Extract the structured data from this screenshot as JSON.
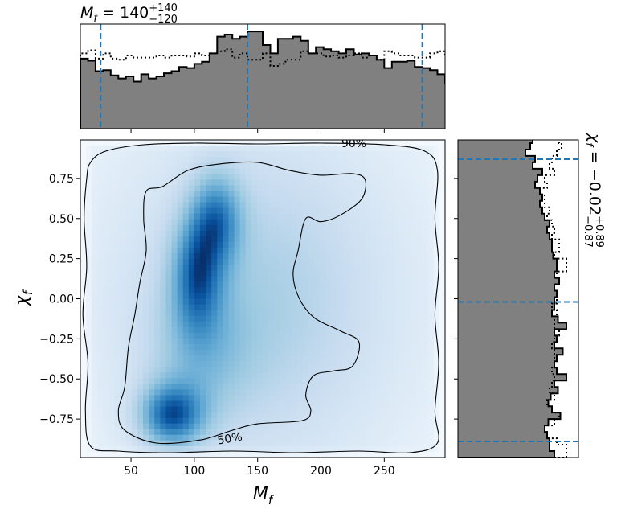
{
  "chart_data": {
    "type": "joint-density",
    "x_param": "M_f",
    "y_param": "χ_f",
    "xlabel": {
      "main": "M",
      "sub": "f"
    },
    "ylabel": {
      "main": "χ",
      "sub": "f"
    },
    "xlim": [
      10,
      298
    ],
    "ylim": [
      -0.99,
      0.99
    ],
    "x_ticks": [
      50,
      100,
      150,
      200,
      250
    ],
    "y_ticks": [
      0.75,
      0.5,
      0.25,
      0.0,
      -0.25,
      -0.5,
      -0.75
    ],
    "x_tick_labels": [
      "50",
      "100",
      "150",
      "200",
      "250"
    ],
    "y_tick_labels": [
      "0.75",
      "0.50",
      "0.25",
      "0.00",
      "−0.25",
      "−0.50",
      "−0.75"
    ],
    "top_title": {
      "param": "M",
      "sub": "f",
      "median": "140",
      "plus": "+140",
      "minus": "−120"
    },
    "right_title": {
      "param": "χ",
      "sub": "f",
      "median": "−0.02",
      "plus": "+0.89",
      "minus": "−0.87"
    },
    "x_quantile_lines": [
      26,
      142,
      280
    ],
    "y_quantile_lines": [
      -0.89,
      -0.02,
      0.87
    ],
    "density_blobs": [
      {
        "x": 118,
        "y": 0.5,
        "sx": 14,
        "sy": 0.2,
        "w": 0.55
      },
      {
        "x": 102,
        "y": 0.15,
        "sx": 14,
        "sy": 0.25,
        "w": 0.6
      },
      {
        "x": 82,
        "y": -0.73,
        "sx": 18,
        "sy": 0.14,
        "w": 0.75
      },
      {
        "x": 105,
        "y": -0.35,
        "sx": 28,
        "sy": 0.3,
        "w": 0.25
      },
      {
        "x": 150,
        "y": 0.0,
        "sx": 60,
        "sy": 0.6,
        "w": 0.2
      },
      {
        "x": 150,
        "y": 0.0,
        "sx": 130,
        "sy": 1.2,
        "w": 0.25
      }
    ],
    "contours": [
      {
        "label": "90%",
        "label_pos": [
          226,
          0.97
        ],
        "points": [
          [
            18,
            0.85
          ],
          [
            30,
            0.92
          ],
          [
            60,
            0.96
          ],
          [
            100,
            0.97
          ],
          [
            150,
            0.965
          ],
          [
            200,
            0.97
          ],
          [
            250,
            0.96
          ],
          [
            282,
            0.92
          ],
          [
            292,
            0.8
          ],
          [
            290,
            0.5
          ],
          [
            293,
            0.2
          ],
          [
            290,
            -0.1
          ],
          [
            293,
            -0.4
          ],
          [
            290,
            -0.7
          ],
          [
            292,
            -0.9
          ],
          [
            270,
            -0.96
          ],
          [
            230,
            -0.95
          ],
          [
            180,
            -0.96
          ],
          [
            130,
            -0.95
          ],
          [
            80,
            -0.96
          ],
          [
            40,
            -0.95
          ],
          [
            18,
            -0.92
          ],
          [
            14,
            -0.7
          ],
          [
            16,
            -0.4
          ],
          [
            12,
            -0.1
          ],
          [
            15,
            0.2
          ],
          [
            13,
            0.5
          ],
          [
            15,
            0.75
          ]
        ]
      },
      {
        "label": "50%",
        "label_pos": [
          128,
          -0.87
        ],
        "points": [
          [
            62,
            0.67
          ],
          [
            75,
            0.7
          ],
          [
            95,
            0.8
          ],
          [
            120,
            0.84
          ],
          [
            150,
            0.85
          ],
          [
            175,
            0.8
          ],
          [
            200,
            0.77
          ],
          [
            225,
            0.78
          ],
          [
            235,
            0.74
          ],
          [
            232,
            0.62
          ],
          [
            215,
            0.52
          ],
          [
            200,
            0.48
          ],
          [
            188,
            0.5
          ],
          [
            182,
            0.3
          ],
          [
            178,
            0.15
          ],
          [
            183,
            0.0
          ],
          [
            195,
            -0.12
          ],
          [
            215,
            -0.2
          ],
          [
            230,
            -0.27
          ],
          [
            225,
            -0.42
          ],
          [
            210,
            -0.45
          ],
          [
            194,
            -0.48
          ],
          [
            188,
            -0.6
          ],
          [
            192,
            -0.7
          ],
          [
            185,
            -0.76
          ],
          [
            150,
            -0.78
          ],
          [
            130,
            -0.82
          ],
          [
            105,
            -0.88
          ],
          [
            70,
            -0.9
          ],
          [
            45,
            -0.82
          ],
          [
            40,
            -0.7
          ],
          [
            45,
            -0.55
          ],
          [
            48,
            -0.3
          ],
          [
            53,
            -0.1
          ],
          [
            57,
            0.1
          ],
          [
            62,
            0.3
          ],
          [
            60,
            0.5
          ]
        ]
      }
    ],
    "marginal_x": {
      "bin_start": 10,
      "bin_width": 6,
      "solid_heights": [
        0.67,
        0.65,
        0.55,
        0.56,
        0.51,
        0.48,
        0.5,
        0.45,
        0.52,
        0.48,
        0.5,
        0.53,
        0.55,
        0.59,
        0.58,
        0.62,
        0.64,
        0.72,
        0.88,
        0.9,
        0.86,
        0.88,
        0.93,
        0.93,
        0.8,
        0.72,
        0.86,
        0.86,
        0.88,
        0.84,
        0.72,
        0.78,
        0.76,
        0.74,
        0.72,
        0.76,
        0.71,
        0.72,
        0.7,
        0.66,
        0.58,
        0.64,
        0.64,
        0.65,
        0.59,
        0.58,
        0.56,
        0.52,
        0.44,
        0.48
      ],
      "dotted_heights": [
        0.72,
        0.75,
        0.67,
        0.72,
        0.67,
        0.66,
        0.7,
        0.68,
        0.68,
        0.68,
        0.7,
        0.68,
        0.7,
        0.7,
        0.69,
        0.72,
        0.7,
        0.72,
        0.74,
        0.76,
        0.68,
        0.72,
        0.66,
        0.66,
        0.72,
        0.6,
        0.62,
        0.66,
        0.66,
        0.74,
        0.72,
        0.72,
        0.69,
        0.7,
        0.68,
        0.7,
        0.72,
        0.68,
        0.7,
        0.66,
        0.74,
        0.72,
        0.7,
        0.7,
        0.68,
        0.68,
        0.72,
        0.74,
        0.7,
        0.72
      ],
      "ymax": 1.0
    },
    "marginal_y": {
      "bin_start": -0.99,
      "bin_width": 0.04,
      "solid_widths": [
        0.8,
        0.76,
        0.76,
        0.74,
        0.72,
        0.75,
        0.85,
        0.78,
        0.75,
        0.77,
        0.83,
        0.8,
        0.9,
        0.82,
        0.8,
        0.82,
        0.87,
        0.8,
        0.82,
        0.8,
        0.9,
        0.83,
        0.78,
        0.8,
        0.8,
        0.82,
        0.8,
        0.84,
        0.8,
        0.82,
        0.82,
        0.79,
        0.78,
        0.78,
        0.76,
        0.74,
        0.76,
        0.72,
        0.7,
        0.68,
        0.7,
        0.68,
        0.64,
        0.66,
        0.7,
        0.62,
        0.64,
        0.56,
        0.6,
        0.62
      ],
      "dotted_widths": [
        0.9,
        0.9,
        0.82,
        0.74,
        0.72,
        0.8,
        0.84,
        0.78,
        0.74,
        0.8,
        0.76,
        0.78,
        0.8,
        0.78,
        0.8,
        0.8,
        0.8,
        0.78,
        0.8,
        0.84,
        0.8,
        0.8,
        0.82,
        0.78,
        0.82,
        0.82,
        0.8,
        0.84,
        0.82,
        0.9,
        0.9,
        0.8,
        0.84,
        0.84,
        0.78,
        0.8,
        0.78,
        0.74,
        0.76,
        0.72,
        0.72,
        0.68,
        0.74,
        0.72,
        0.8,
        0.76,
        0.78,
        0.82,
        0.86,
        0.84
      ],
      "xmax": 1.0
    },
    "colors": {
      "hist_fill": "#808080",
      "quantile_line": "#1f77b4",
      "cmap_low": "#ffffff",
      "cmap_high": "#08306b"
    }
  }
}
